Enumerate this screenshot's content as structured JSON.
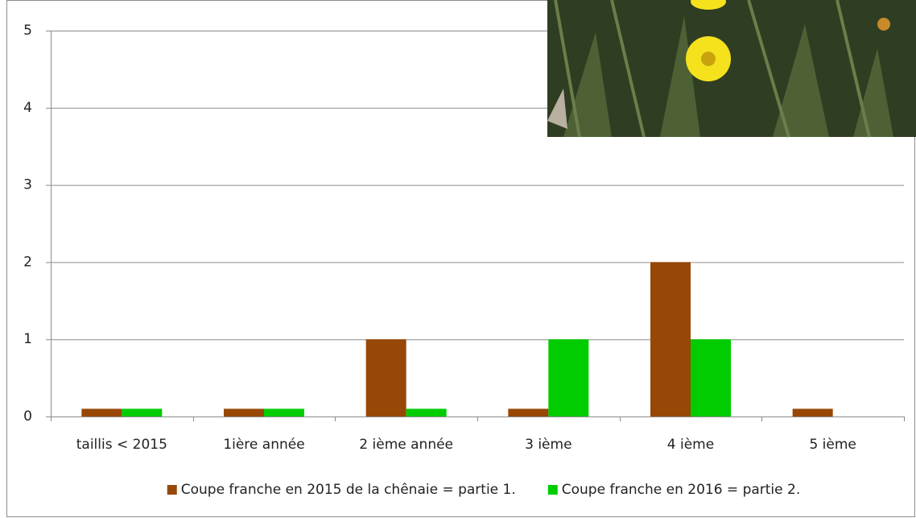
{
  "chart_data": {
    "type": "bar",
    "categories": [
      "taillis < 2015",
      "1ière année",
      "2 ième année",
      "3 ième",
      "4 ième",
      "5 ième"
    ],
    "series": [
      {
        "name": "Coupe franche en 2015 de la chênaie = partie 1.",
        "color": "#974706",
        "values": [
          0.1,
          0.1,
          1,
          0.1,
          2,
          0.1
        ]
      },
      {
        "name": "Coupe franche en 2016 = partie 2.",
        "color": "#00cc00",
        "values": [
          0.1,
          0.1,
          0.1,
          1,
          1,
          null
        ]
      }
    ],
    "ylim": [
      0,
      5
    ],
    "yticks": [
      0,
      1,
      2,
      3,
      4,
      5
    ],
    "grid": true,
    "legend": "bottom"
  }
}
